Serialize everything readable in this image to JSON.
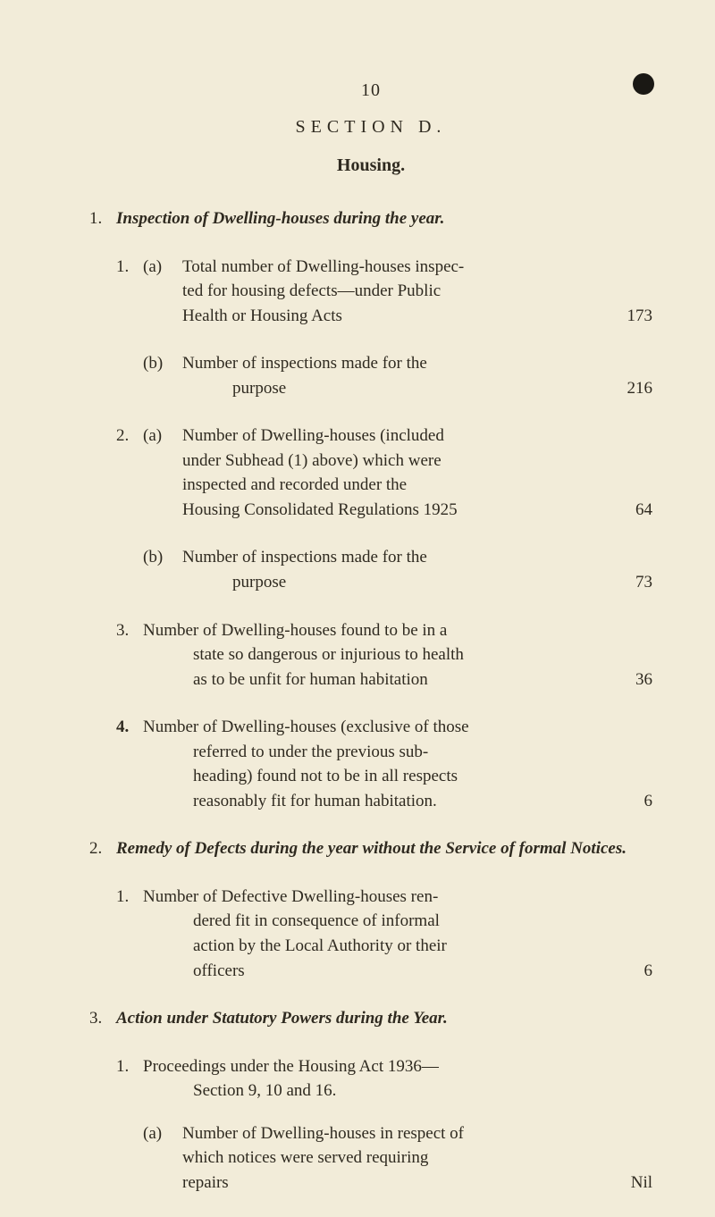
{
  "page": {
    "number": "10",
    "section_label": "SECTION   D.",
    "housing_label": "Housing."
  },
  "colors": {
    "background": "#f2ecd9",
    "text": "#2f2a20",
    "dot": "#1a1814"
  },
  "headings": {
    "h1": {
      "num": "1.",
      "text": "Inspection of Dwelling-houses during the year."
    },
    "h2": {
      "num": "2.",
      "text": "Remedy of Defects during the year without the Service of formal Notices."
    },
    "h3": {
      "num": "3.",
      "text": "Action under Statutory Powers during the Year."
    }
  },
  "items": {
    "i1a": {
      "subnum": "1.",
      "sublet": "(a)",
      "line1": "Total number of Dwelling-houses inspec-",
      "line2": "ted for housing defects—under Public",
      "line3": "Health or Housing Acts",
      "value": "173"
    },
    "i1b": {
      "sublet": "(b)",
      "line1": "Number of inspections made for the",
      "line2": "purpose",
      "value": "216"
    },
    "i2a": {
      "subnum": "2.",
      "sublet": "(a)",
      "line1": "Number of Dwelling-houses (included",
      "line2": "under Subhead (1) above) which were",
      "line3": "inspected and recorded under the",
      "line4": "Housing Consolidated Regulations 1925",
      "value": "64"
    },
    "i2b": {
      "sublet": "(b)",
      "line1": "Number of inspections made for the",
      "line2": "purpose",
      "value": "73"
    },
    "i3": {
      "subnum": "3.",
      "line1": "Number of Dwelling-houses found to be in a",
      "line2": "state so dangerous or injurious to health",
      "line3": "as to be unfit for human habitation",
      "value": "36"
    },
    "i4": {
      "subnum": "4.",
      "line1": "Number of Dwelling-houses (exclusive of those",
      "line2": "referred to under the previous sub-",
      "line3": "heading) found not to be in all respects",
      "line4": "reasonably fit for human habitation.",
      "value": "6"
    },
    "r1": {
      "subnum": "1.",
      "line1": "Number of Defective Dwelling-houses ren-",
      "line2": "dered fit in consequence of informal",
      "line3": "action by the Local Authority or their",
      "line4": "officers",
      "value": "6"
    },
    "a1": {
      "subnum": "1.",
      "line1": "Proceedings under the Housing Act 1936—",
      "line2": "Section 9, 10 and 16."
    },
    "a1a": {
      "sublet": "(a)",
      "line1": "Number of Dwelling-houses in respect of",
      "line2": "which notices were served requiring",
      "line3": "repairs",
      "value": "Nil"
    }
  }
}
